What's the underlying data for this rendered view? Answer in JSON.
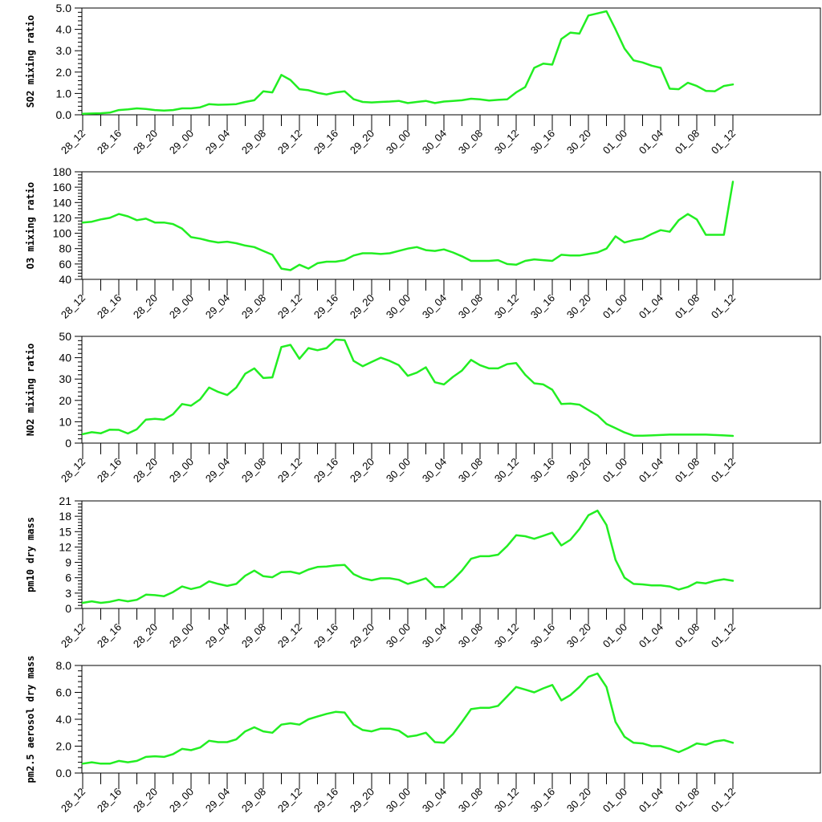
{
  "line_color": "#22ee22",
  "chart_data": [
    {
      "type": "line",
      "ylabel": "SO2 mixing ratio",
      "ylim": [
        0,
        5
      ],
      "yticks": [
        "0.0",
        "1.0",
        "2.0",
        "3.0",
        "4.0",
        "5.0"
      ],
      "xtick_labels": [
        "28_12",
        "28_16",
        "28_20",
        "29_00",
        "29_04",
        "29_08",
        "29_12",
        "29_16",
        "29_20",
        "30_00",
        "30_04",
        "30_08",
        "30_12",
        "30_16",
        "30_20",
        "01_00",
        "01_04",
        "01_08",
        "01_12"
      ],
      "values": [
        0.05,
        0.06,
        0.07,
        0.1,
        0.22,
        0.25,
        0.3,
        0.27,
        0.22,
        0.2,
        0.22,
        0.3,
        0.3,
        0.35,
        0.5,
        0.47,
        0.48,
        0.5,
        0.6,
        0.68,
        1.1,
        1.05,
        1.87,
        1.63,
        1.2,
        1.15,
        1.03,
        0.95,
        1.05,
        1.1,
        0.73,
        0.6,
        0.58,
        0.6,
        0.62,
        0.65,
        0.55,
        0.6,
        0.65,
        0.55,
        0.62,
        0.65,
        0.68,
        0.75,
        0.72,
        0.67,
        0.7,
        0.72,
        1.05,
        1.3,
        2.2,
        2.4,
        2.35,
        3.55,
        3.85,
        3.8,
        4.65,
        4.75,
        4.85,
        4.0,
        3.1,
        2.55,
        2.45,
        2.3,
        2.2,
        1.22,
        1.2,
        1.5,
        1.35,
        1.12,
        1.1,
        1.35,
        1.42
      ]
    },
    {
      "type": "line",
      "ylabel": "O3 mixing ratio",
      "ylim": [
        40,
        180
      ],
      "yticks": [
        "40",
        "60",
        "80",
        "100",
        "120",
        "140",
        "160",
        "180"
      ],
      "xtick_labels": [
        "28_12",
        "28_16",
        "28_20",
        "29_00",
        "29_04",
        "29_08",
        "29_12",
        "29_16",
        "29_20",
        "30_00",
        "30_04",
        "30_08",
        "30_12",
        "30_16",
        "30_20",
        "01_00",
        "01_04",
        "01_08",
        "01_12"
      ],
      "values": [
        114,
        115,
        118,
        120,
        125,
        122,
        117,
        119,
        114,
        114,
        112,
        106,
        95,
        93,
        90,
        88,
        89,
        87,
        84,
        82,
        77,
        72,
        54,
        52,
        59,
        54,
        61,
        63,
        63,
        65,
        71,
        74,
        74,
        73,
        74,
        77,
        80,
        82,
        78,
        77,
        79,
        75,
        70,
        64,
        64,
        64,
        65,
        60,
        59,
        64,
        66,
        65,
        64,
        72,
        71,
        71,
        73,
        75,
        80,
        96,
        88,
        91,
        93,
        99,
        104,
        102,
        117,
        125,
        118,
        98,
        98,
        98,
        167
      ]
    },
    {
      "type": "line",
      "ylabel": "NO2 mixing ratio",
      "ylim": [
        0,
        50
      ],
      "yticks": [
        "0",
        "10",
        "20",
        "30",
        "40",
        "50"
      ],
      "xtick_labels": [
        "28_12",
        "28_16",
        "28_20",
        "29_00",
        "29_04",
        "29_08",
        "29_12",
        "29_16",
        "29_20",
        "30_00",
        "30_04",
        "30_08",
        "30_12",
        "30_16",
        "30_20",
        "01_00",
        "01_04",
        "01_08",
        "01_12"
      ],
      "values": [
        4.2,
        5.1,
        4.6,
        6.3,
        6.2,
        4.5,
        6.5,
        11,
        11.4,
        11,
        13.5,
        18.3,
        17.5,
        20.5,
        26,
        24,
        22.5,
        26,
        32.5,
        35,
        30.5,
        30.8,
        45,
        46,
        39.5,
        44.5,
        43.5,
        44.5,
        48.5,
        48.2,
        38.5,
        36,
        38,
        40,
        38.5,
        36.5,
        31.5,
        33,
        35.5,
        28.5,
        27.5,
        31,
        34,
        39,
        36.5,
        35,
        35,
        37,
        37.5,
        32,
        28,
        27.5,
        25,
        18.3,
        18.5,
        18,
        15.5,
        13,
        9,
        7,
        5,
        3.5,
        3.5,
        3.6,
        3.8,
        4,
        4,
        4,
        4,
        4,
        3.8,
        3.6,
        3.4
      ]
    },
    {
      "type": "line",
      "ylabel": "pm10 dry mass",
      "ylim": [
        0,
        21
      ],
      "yticks": [
        "0",
        "3",
        "6",
        "9",
        "12",
        "15",
        "18",
        "21"
      ],
      "xtick_labels": [
        "28_12",
        "28_16",
        "28_20",
        "29_00",
        "29_04",
        "29_08",
        "29_12",
        "29_16",
        "29_20",
        "30_00",
        "30_04",
        "30_08",
        "30_12",
        "30_16",
        "30_20",
        "01_00",
        "01_04",
        "01_08",
        "01_12"
      ],
      "values": [
        1.1,
        1.4,
        1.1,
        1.3,
        1.7,
        1.4,
        1.7,
        2.7,
        2.6,
        2.4,
        3.2,
        4.3,
        3.8,
        4.2,
        5.3,
        4.8,
        4.4,
        4.8,
        6.4,
        7.4,
        6.3,
        6.1,
        7.1,
        7.2,
        6.8,
        7.6,
        8.1,
        8.2,
        8.4,
        8.5,
        6.7,
        5.9,
        5.5,
        5.9,
        5.9,
        5.6,
        4.8,
        5.3,
        5.9,
        4.2,
        4.2,
        5.6,
        7.4,
        9.7,
        10.2,
        10.2,
        10.5,
        12.2,
        14.3,
        14.1,
        13.6,
        14.2,
        14.8,
        12.3,
        13.4,
        15.5,
        18.2,
        19.1,
        16.3,
        9.5,
        6,
        4.8,
        4.7,
        4.5,
        4.5,
        4.3,
        3.7,
        4.2,
        5.1,
        4.9,
        5.4,
        5.7,
        5.4
      ]
    },
    {
      "type": "line",
      "ylabel": "pm2.5 aerosol dry mass",
      "ylim": [
        0,
        8
      ],
      "yticks": [
        "0.0",
        "2.0",
        "4.0",
        "6.0",
        "8.0"
      ],
      "xtick_labels": [
        "28_12",
        "28_16",
        "28_20",
        "29_00",
        "29_04",
        "29_08",
        "29_12",
        "29_16",
        "29_20",
        "30_00",
        "30_04",
        "30_08",
        "30_12",
        "30_16",
        "30_20",
        "01_00",
        "01_04",
        "01_08",
        "01_12"
      ],
      "values": [
        0.7,
        0.8,
        0.7,
        0.7,
        0.9,
        0.8,
        0.9,
        1.2,
        1.25,
        1.2,
        1.4,
        1.8,
        1.7,
        1.9,
        2.4,
        2.3,
        2.3,
        2.5,
        3.1,
        3.4,
        3.1,
        3,
        3.6,
        3.7,
        3.6,
        4,
        4.2,
        4.4,
        4.55,
        4.5,
        3.6,
        3.2,
        3.1,
        3.3,
        3.3,
        3.15,
        2.7,
        2.8,
        3,
        2.3,
        2.25,
        2.9,
        3.8,
        4.75,
        4.85,
        4.85,
        5,
        5.7,
        6.4,
        6.2,
        6,
        6.3,
        6.55,
        5.4,
        5.8,
        6.4,
        7.15,
        7.4,
        6.4,
        3.8,
        2.7,
        2.25,
        2.2,
        2,
        2,
        1.8,
        1.55,
        1.85,
        2.2,
        2.1,
        2.35,
        2.45,
        2.25
      ]
    }
  ]
}
